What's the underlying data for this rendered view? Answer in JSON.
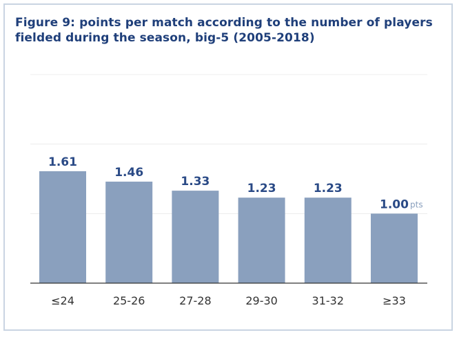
{
  "title_lines": [
    "Figure 9: points per match according to the number of players",
    "fielded during the season, big-5 (2005-2018)"
  ],
  "colors": {
    "title": "#1f3f7a",
    "bar": "#8aa0be",
    "value_label": "#2a4a86",
    "unit": "#8aa0be"
  },
  "chart_data": {
    "type": "bar",
    "title": "Figure 9: points per match according to the number of players fielded during the season, big-5 (2005-2018)",
    "categories": [
      "≤24",
      "25-26",
      "27-28",
      "29-30",
      "31-32",
      "≥33"
    ],
    "values": [
      1.61,
      1.46,
      1.33,
      1.23,
      1.23,
      1.0
    ],
    "value_labels": [
      "1.61",
      "1.46",
      "1.33",
      "1.23",
      "1.23",
      "1.00"
    ],
    "unit_label": "pts",
    "xlabel": "",
    "ylabel": "",
    "ylim": [
      0,
      3
    ],
    "grid": true
  }
}
